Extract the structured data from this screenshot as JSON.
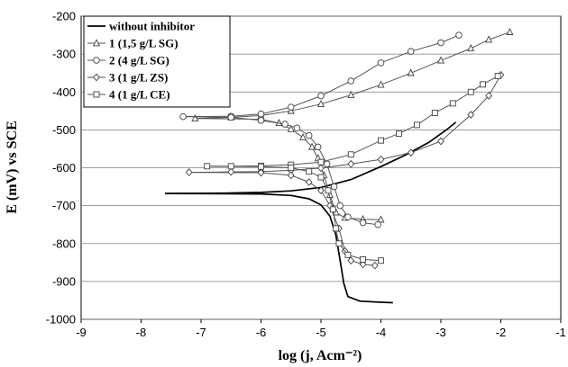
{
  "chart_data": {
    "type": "line",
    "xlabel": "log (j, Acm⁻²)",
    "ylabel": "E (mV) vs SCE",
    "xlim": [
      -9,
      -1
    ],
    "ylim": [
      -1000,
      -200
    ],
    "xticks": [
      "-9",
      "-8",
      "-7",
      "-6",
      "-5",
      "-4",
      "-3",
      "-2",
      "-1"
    ],
    "yticks": [
      "-1000",
      "-900",
      "-800",
      "-700",
      "-600",
      "-500",
      "-400",
      "-300",
      "-200"
    ],
    "grid": true,
    "legend_position": "top-left",
    "series": [
      {
        "name": "without inhibitor",
        "marker": "none",
        "anodic": [
          [
            -7.6,
            -668
          ],
          [
            -6.6,
            -667
          ],
          [
            -6.0,
            -665
          ],
          [
            -5.5,
            -661
          ],
          [
            -5.0,
            -652
          ],
          [
            -4.5,
            -631
          ],
          [
            -4.0,
            -597
          ],
          [
            -3.6,
            -567
          ],
          [
            -3.2,
            -533
          ],
          [
            -2.9,
            -499
          ],
          [
            -2.75,
            -480
          ]
        ],
        "cathodic": [
          [
            -7.6,
            -668
          ],
          [
            -6.0,
            -669
          ],
          [
            -5.5,
            -673
          ],
          [
            -5.2,
            -682
          ],
          [
            -5.0,
            -698
          ],
          [
            -4.85,
            -728
          ],
          [
            -4.75,
            -778
          ],
          [
            -4.68,
            -845
          ],
          [
            -4.62,
            -905
          ],
          [
            -4.55,
            -940
          ],
          [
            -4.35,
            -952
          ],
          [
            -4.0,
            -955
          ],
          [
            -3.8,
            -956
          ]
        ]
      },
      {
        "name": "1 (1,5 g/L SG)",
        "marker": "triangle",
        "anodic": [
          [
            -7.1,
            -470
          ],
          [
            -6.5,
            -467
          ],
          [
            -6.0,
            -462
          ],
          [
            -5.5,
            -450
          ],
          [
            -5.0,
            -432
          ],
          [
            -4.5,
            -408
          ],
          [
            -4.0,
            -381
          ],
          [
            -3.5,
            -350
          ],
          [
            -3.0,
            -317
          ],
          [
            -2.5,
            -285
          ],
          [
            -2.2,
            -262
          ],
          [
            -1.85,
            -242
          ]
        ],
        "cathodic": [
          [
            -7.1,
            -470
          ],
          [
            -6.0,
            -472
          ],
          [
            -5.7,
            -482
          ],
          [
            -5.5,
            -498
          ],
          [
            -5.3,
            -520
          ],
          [
            -5.15,
            -545
          ],
          [
            -5.05,
            -575
          ],
          [
            -4.95,
            -620
          ],
          [
            -4.85,
            -672
          ],
          [
            -4.75,
            -718
          ],
          [
            -4.6,
            -732
          ],
          [
            -4.3,
            -736
          ],
          [
            -4.0,
            -737
          ]
        ]
      },
      {
        "name": "2 (4 g/L SG)",
        "marker": "circle",
        "anodic": [
          [
            -7.3,
            -465
          ],
          [
            -6.5,
            -464
          ],
          [
            -6.0,
            -458
          ],
          [
            -5.5,
            -440
          ],
          [
            -5.0,
            -410
          ],
          [
            -4.5,
            -371
          ],
          [
            -4.0,
            -323
          ],
          [
            -3.5,
            -293
          ],
          [
            -3.0,
            -270
          ],
          [
            -2.7,
            -250
          ]
        ],
        "cathodic": [
          [
            -7.3,
            -465
          ],
          [
            -6.5,
            -467
          ],
          [
            -6.0,
            -475
          ],
          [
            -5.6,
            -485
          ],
          [
            -5.4,
            -495
          ],
          [
            -5.2,
            -515
          ],
          [
            -5.05,
            -545
          ],
          [
            -4.9,
            -590
          ],
          [
            -4.78,
            -650
          ],
          [
            -4.68,
            -700
          ],
          [
            -4.55,
            -730
          ],
          [
            -4.3,
            -745
          ],
          [
            -4.05,
            -750
          ]
        ]
      },
      {
        "name": "3 (1 g/L ZS)",
        "marker": "diamond",
        "anodic": [
          [
            -7.2,
            -612
          ],
          [
            -6.5,
            -611
          ],
          [
            -6.0,
            -610
          ],
          [
            -5.5,
            -607
          ],
          [
            -5.0,
            -601
          ],
          [
            -4.5,
            -590
          ],
          [
            -4.0,
            -578
          ],
          [
            -3.5,
            -560
          ],
          [
            -3.0,
            -530
          ],
          [
            -2.5,
            -460
          ],
          [
            -2.2,
            -410
          ],
          [
            -2.0,
            -355
          ]
        ],
        "cathodic": [
          [
            -7.2,
            -612
          ],
          [
            -6.0,
            -613
          ],
          [
            -5.5,
            -620
          ],
          [
            -5.2,
            -638
          ],
          [
            -5.0,
            -660
          ],
          [
            -4.85,
            -700
          ],
          [
            -4.7,
            -760
          ],
          [
            -4.6,
            -820
          ],
          [
            -4.5,
            -845
          ],
          [
            -4.3,
            -855
          ],
          [
            -4.1,
            -858
          ]
        ]
      },
      {
        "name": "4 (1 g/L CE)",
        "marker": "square",
        "anodic": [
          [
            -6.9,
            -596
          ],
          [
            -6.5,
            -596
          ],
          [
            -6.0,
            -595
          ],
          [
            -5.5,
            -592
          ],
          [
            -5.0,
            -585
          ],
          [
            -4.5,
            -565
          ],
          [
            -4.0,
            -528
          ],
          [
            -3.7,
            -510
          ],
          [
            -3.4,
            -487
          ],
          [
            -3.1,
            -455
          ],
          [
            -2.8,
            -430
          ],
          [
            -2.5,
            -400
          ],
          [
            -2.3,
            -380
          ],
          [
            -2.05,
            -358
          ]
        ],
        "cathodic": [
          [
            -6.9,
            -596
          ],
          [
            -6.0,
            -597
          ],
          [
            -5.5,
            -600
          ],
          [
            -5.2,
            -610
          ],
          [
            -5.0,
            -625
          ],
          [
            -4.88,
            -660
          ],
          [
            -4.8,
            -710
          ],
          [
            -4.75,
            -760
          ],
          [
            -4.7,
            -800
          ],
          [
            -4.55,
            -830
          ],
          [
            -4.3,
            -842
          ],
          [
            -4.0,
            -845
          ]
        ]
      }
    ]
  }
}
